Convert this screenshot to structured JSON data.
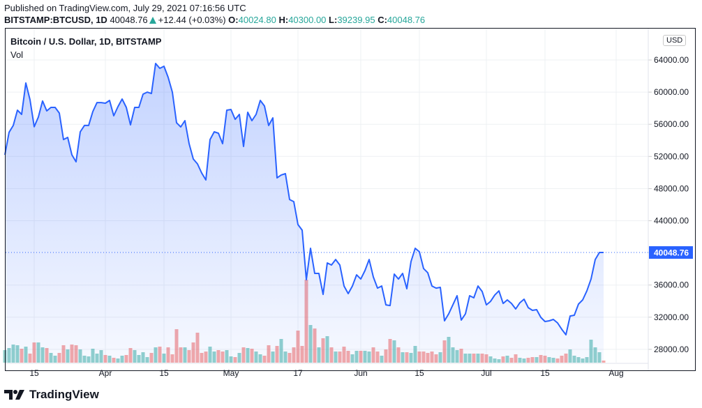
{
  "header": {
    "published": "Published on TradingView.com, July 29, 2021 07:16:56 UTC",
    "symbol": "BITSTAMP:BTCUSD, 1D",
    "last": "40048.76",
    "change": "+12.44 (+0.03%)",
    "o_label": "O:",
    "o": "40024.80",
    "h_label": "H:",
    "h": "40300.00",
    "l_label": "L:",
    "l": "39239.95",
    "c_label": "C:",
    "c": "40048.76"
  },
  "legend": {
    "title": "Bitcoin / U.S. Dollar, 1D, BITSTAMP",
    "vol": "Vol"
  },
  "currency_button": "USD",
  "logo_text": "TradingView",
  "colors": {
    "line": "#2962ff",
    "up": "#26a69a",
    "down": "#ef5350",
    "price_label": "#2962ff"
  },
  "chart_data": {
    "type": "area",
    "x_range": [
      "2021-03-08",
      "2021-07-29"
    ],
    "ylim": [
      26000,
      66500
    ],
    "grid": true,
    "y_ticks": [
      "64000.00",
      "60000.00",
      "56000.00",
      "52000.00",
      "48000.00",
      "44000.00",
      "36000.00",
      "32000.00",
      "28000.00"
    ],
    "last_price_label": "40048.76",
    "x_ticks": [
      {
        "date": "2021-03-15",
        "label": "15"
      },
      {
        "date": "2021-04-01",
        "label": "Apr"
      },
      {
        "date": "2021-04-15",
        "label": "15"
      },
      {
        "date": "2021-05-01",
        "label": "May"
      },
      {
        "date": "2021-05-17",
        "label": "17"
      },
      {
        "date": "2021-06-01",
        "label": "Jun"
      },
      {
        "date": "2021-06-15",
        "label": "15"
      },
      {
        "date": "2021-07-01",
        "label": "Jul"
      },
      {
        "date": "2021-07-15",
        "label": "15"
      },
      {
        "date": "2021-08-01",
        "label": "Aug"
      }
    ],
    "close": [
      52200,
      55000,
      55850,
      57750,
      57230,
      61140,
      59050,
      55700,
      56900,
      58900,
      57670,
      58100,
      58100,
      57400,
      54100,
      54370,
      52200,
      51330,
      55060,
      55850,
      55850,
      57580,
      58700,
      58700,
      58620,
      58970,
      57060,
      58190,
      59140,
      58100,
      55930,
      58100,
      58100,
      59750,
      60000,
      59830,
      63570,
      62960,
      63220,
      61830,
      60000,
      56190,
      55670,
      56450,
      53590,
      51680,
      51070,
      49940,
      49080,
      54100,
      55060,
      54890,
      53590,
      57750,
      57840,
      56620,
      57230,
      53240,
      57490,
      56450,
      57230,
      58970,
      58270,
      55850,
      56800,
      49340,
      49690,
      49860,
      46640,
      46380,
      43520,
      42830,
      36670,
      40570,
      37450,
      37450,
      34840,
      38750,
      38490,
      39180,
      38490,
      35880,
      34930,
      35880,
      37270,
      36750,
      37800,
      39180,
      37010,
      35620,
      35880,
      33540,
      33450,
      37360,
      36750,
      37450,
      35540,
      38920,
      40570,
      40140,
      38050,
      37530,
      35880,
      35620,
      35710,
      31550,
      32420,
      33540,
      34670,
      31640,
      32420,
      34670,
      34410,
      35880,
      35190,
      33540,
      33970,
      34750,
      35270,
      33710,
      34150,
      33710,
      33020,
      33800,
      34240,
      33190,
      32850,
      32940,
      31980,
      31460,
      31550,
      31720,
      31290,
      30500,
      29810,
      32150,
      32240,
      33630,
      34150,
      35270,
      36750,
      39180,
      40050,
      40048.76
    ],
    "volume_relative": [
      18,
      21,
      26,
      25,
      20,
      23,
      13,
      29,
      29,
      22,
      21,
      14,
      10,
      14,
      25,
      19,
      26,
      25,
      19,
      10,
      9,
      20,
      13,
      18,
      11,
      10,
      7,
      6,
      10,
      11,
      21,
      18,
      11,
      15,
      8,
      14,
      22,
      23,
      13,
      22,
      12,
      48,
      22,
      22,
      18,
      29,
      43,
      14,
      16,
      23,
      16,
      18,
      16,
      18,
      9,
      8,
      14,
      22,
      21,
      20,
      16,
      12,
      10,
      25,
      16,
      24,
      34,
      16,
      14,
      22,
      46,
      24,
      119,
      54,
      49,
      22,
      35,
      38,
      22,
      16,
      16,
      23,
      17,
      12,
      17,
      17,
      17,
      16,
      22,
      16,
      10,
      19,
      34,
      32,
      22,
      15,
      15,
      14,
      24,
      16,
      16,
      14,
      16,
      12,
      15,
      32,
      37,
      22,
      18,
      20,
      13,
      13,
      13,
      13,
      13,
      12,
      9,
      6,
      5,
      9,
      10,
      7,
      12,
      7,
      6,
      7,
      8,
      8,
      11,
      10,
      8,
      7,
      6,
      10,
      13,
      19,
      10,
      8,
      6,
      8,
      33,
      22,
      15,
      3
    ]
  }
}
